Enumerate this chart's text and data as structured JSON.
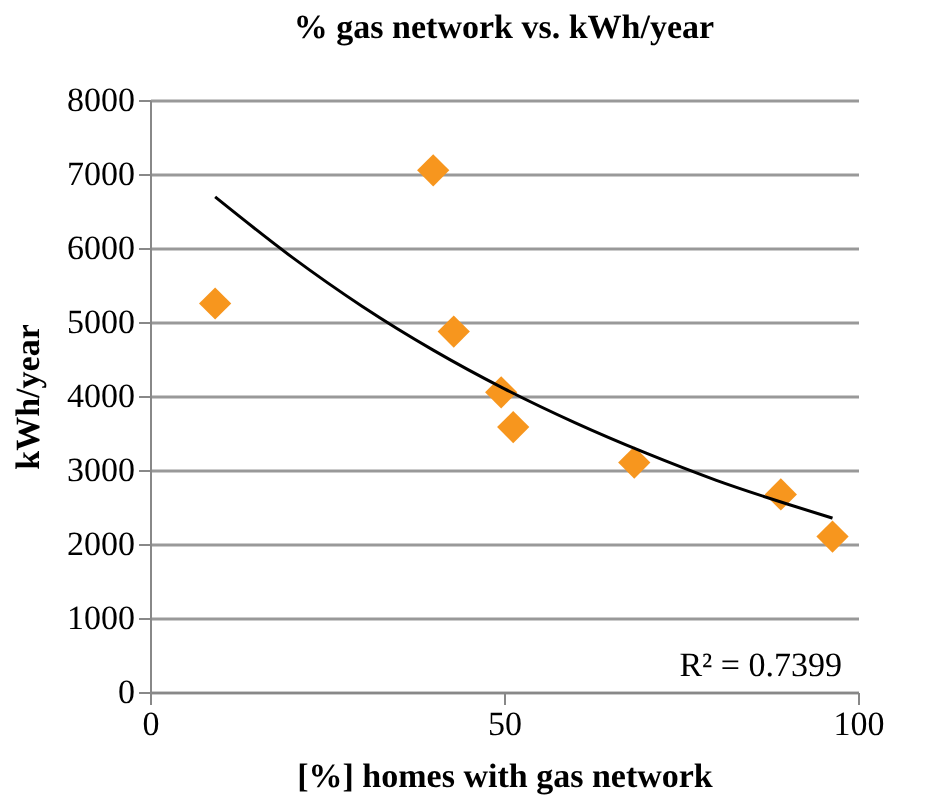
{
  "chart_data": {
    "type": "scatter",
    "title": "% gas network vs. kWh/year",
    "xlabel": "[%] homes with gas network",
    "ylabel": "kWh/year",
    "xlim": [
      0,
      100
    ],
    "xticks": [
      0,
      50,
      100
    ],
    "ylim": [
      0,
      8000
    ],
    "yticks": [
      0,
      1000,
      2000,
      3000,
      4000,
      5000,
      6000,
      7000,
      8000
    ],
    "grid": "y",
    "series": [
      {
        "type": "scatter",
        "marker": "diamond",
        "color": "#f7961e",
        "x": [
          9.2,
          40,
          42.9,
          49.6,
          51.3,
          68.4,
          89.1,
          96.4
        ],
        "values": [
          5250,
          7050,
          4870,
          4050,
          3580,
          3100,
          2670,
          2100
        ]
      },
      {
        "type": "line",
        "marker": "none",
        "color": "#000000",
        "x": [
          9.2,
          20,
          30,
          40,
          50,
          60,
          70,
          80,
          90,
          96.4
        ],
        "values": [
          6690,
          5880,
          5210,
          4620,
          4100,
          3640,
          3230,
          2860,
          2540,
          2350
        ]
      }
    ],
    "annotations": [
      "R² = 0.7399"
    ]
  }
}
